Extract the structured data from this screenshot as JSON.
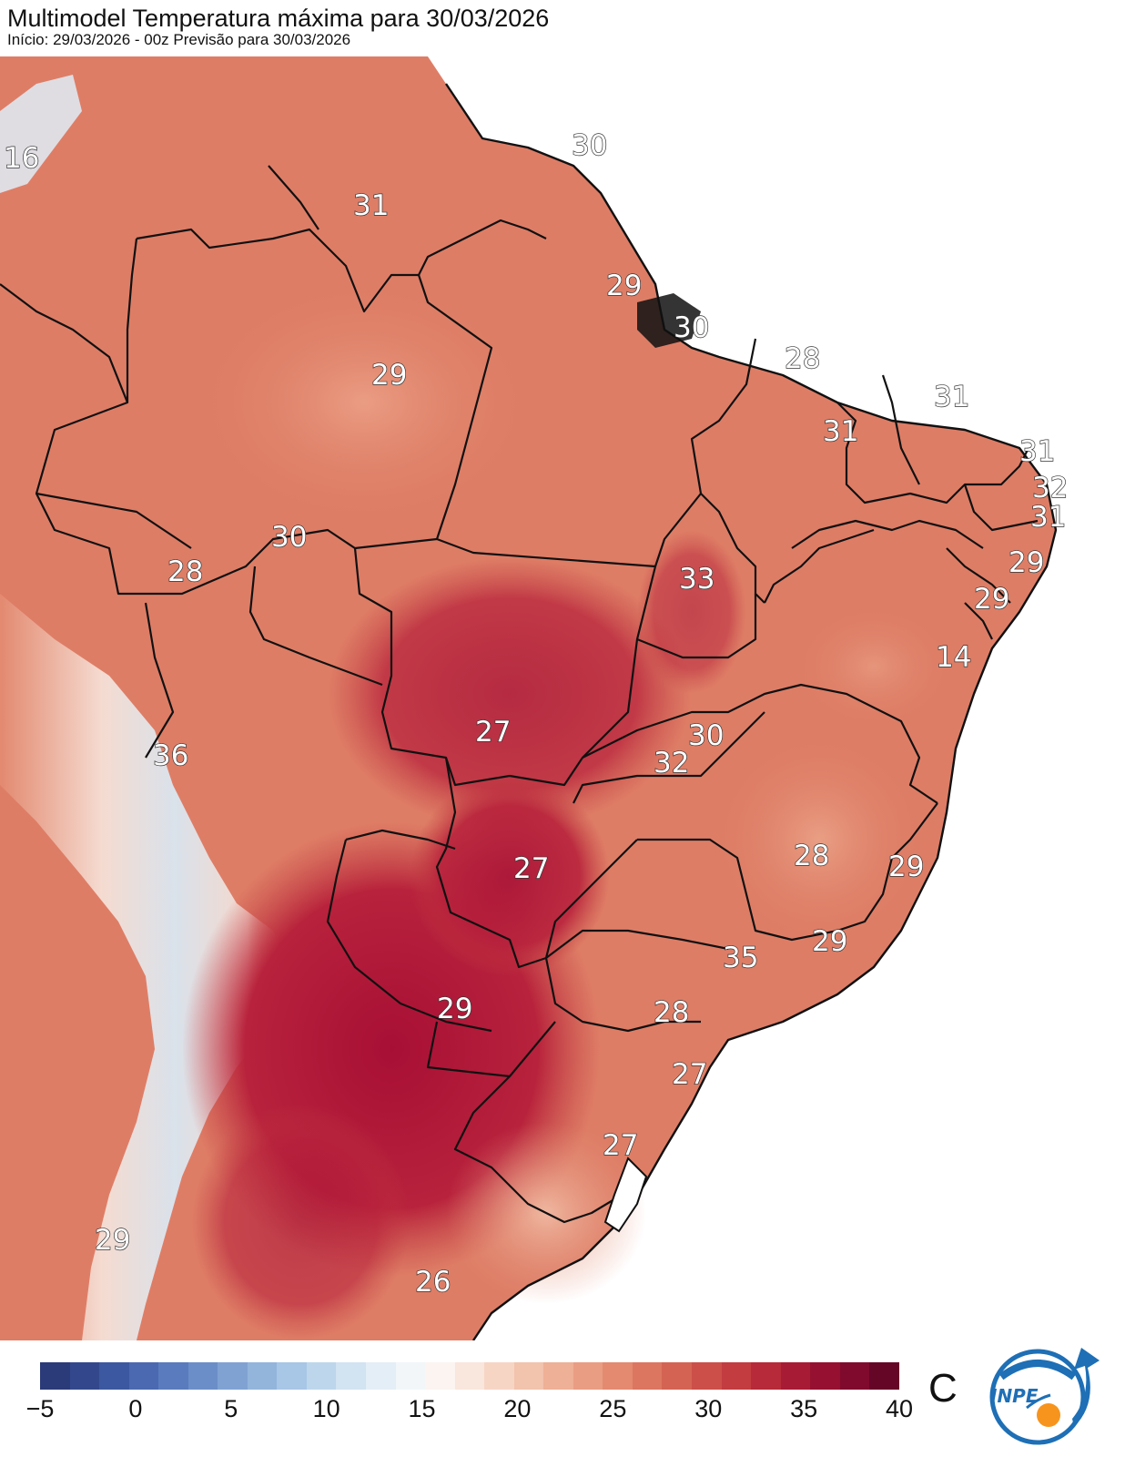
{
  "header": {
    "title": "Multimodel Temperatura máxima para 30/03/2026",
    "subtitle": "Início: 29/03/2026 - 00z  Previsão para 30/03/2026"
  },
  "map": {
    "labels": [
      "16",
      "31",
      "30",
      "29",
      "30",
      "29",
      "28",
      "31",
      "31",
      "31",
      "32",
      "31",
      "28",
      "30",
      "29",
      "33",
      "29",
      "14",
      "36",
      "27",
      "30",
      "32",
      "27",
      "28",
      "29",
      "29",
      "35",
      "29",
      "28",
      "27",
      "27",
      "29",
      "26"
    ]
  },
  "legend": {
    "unit": "C",
    "ticks": [
      "−5",
      "0",
      "5",
      "10",
      "15",
      "20",
      "25",
      "30",
      "35",
      "40"
    ],
    "colors": [
      "#2b3a78",
      "#33488c",
      "#3c58a0",
      "#4a69b0",
      "#5a7bbd",
      "#6b8ec8",
      "#7fa2d2",
      "#93b5dc",
      "#a8c6e5",
      "#bdd6ec",
      "#d2e3f1",
      "#e4eef6",
      "#f2f6f9",
      "#fbf4f0",
      "#f9e6dc",
      "#f6d5c5",
      "#f2c3ad",
      "#eeb096",
      "#e99d82",
      "#e38a70",
      "#dc7661",
      "#d46354",
      "#cc4f49",
      "#c23c40",
      "#b62a39",
      "#a81b35",
      "#961031",
      "#800a2d",
      "#650627"
    ],
    "logo_text": "INPE"
  }
}
